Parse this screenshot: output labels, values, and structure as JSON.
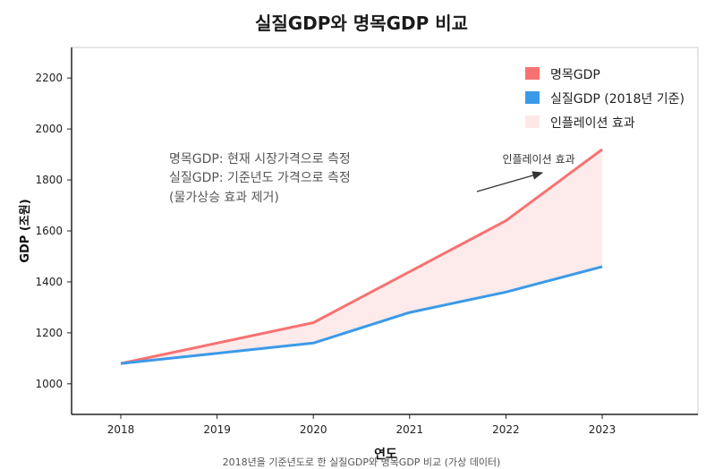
{
  "chart_data": {
    "type": "area",
    "title": "실질GDP와 명목GDP 비교",
    "xlabel": "연도",
    "ylabel": "GDP (조원)",
    "categories": [
      "2018",
      "2019",
      "2020",
      "2021",
      "2022",
      "2023"
    ],
    "ylim": [
      880,
      2320
    ],
    "yticks": [
      1000,
      1200,
      1400,
      1600,
      1800,
      2000,
      2200
    ],
    "series": [
      {
        "name": "명목GDP",
        "color": "#f87171",
        "values": [
          1080,
          1160,
          1240,
          1440,
          1640,
          1920
        ]
      },
      {
        "name": "실질GDP (2018년 기준)",
        "color": "#3b9ae8",
        "values": [
          1080,
          1120,
          1160,
          1280,
          1360,
          1460
        ]
      }
    ],
    "fill": {
      "name": "인플레이션 효과",
      "color": "#fde8e8"
    },
    "legend_position": "top-right",
    "grid": false,
    "annotations": {
      "note_lines": [
        "명목GDP: 현재 시장가격으로 측정",
        "실질GDP: 기준년도 가격으로 측정",
        "(물가상승 효과 제거)"
      ],
      "arrow_label": "인플레이션 효과"
    },
    "caption": "2018년을 기준년도로 한 실질GDP와 명목GDP 비교 (가상 데이터)"
  }
}
